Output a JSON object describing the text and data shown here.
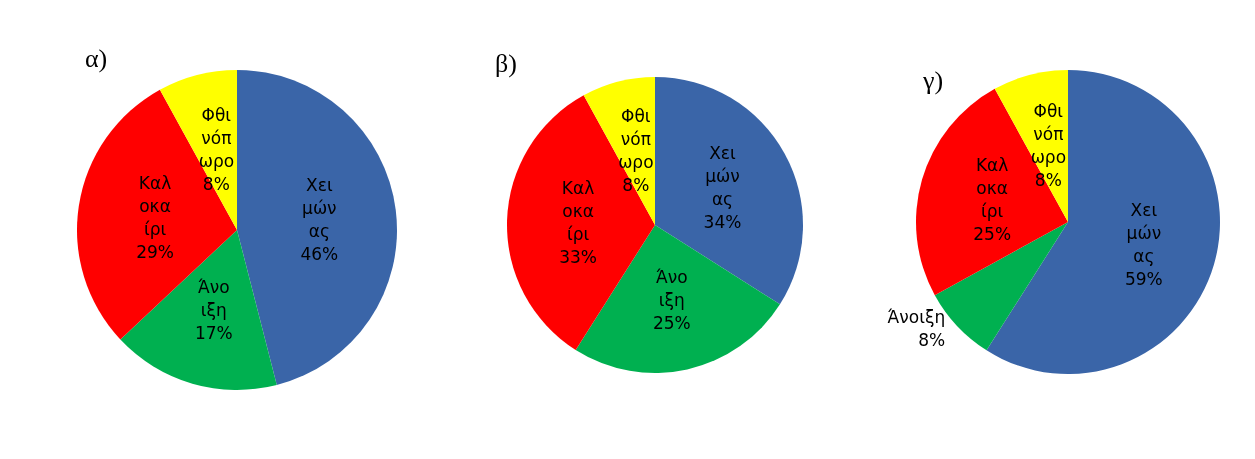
{
  "chart_data": [
    {
      "type": "pie",
      "title": "α)",
      "categories": [
        "Χειμώνας",
        "Άνοιξη",
        "Καλοκαίρι",
        "Φθινόπωρο"
      ],
      "values": [
        46,
        17,
        29,
        8
      ],
      "value_labels": [
        "46%",
        "17%",
        "29%",
        "8%"
      ],
      "colors": [
        "#3a65a8",
        "#00b050",
        "#ff0000",
        "#ffff00"
      ],
      "legend": false
    },
    {
      "type": "pie",
      "title": "β)",
      "categories": [
        "Χειμώνας",
        "Άνοιξη",
        "Καλοκαίρι",
        "Φθινόπωρο"
      ],
      "values": [
        34,
        25,
        33,
        8
      ],
      "value_labels": [
        "34%",
        "25%",
        "33%",
        "8%"
      ],
      "colors": [
        "#3a65a8",
        "#00b050",
        "#ff0000",
        "#ffff00"
      ],
      "legend": false
    },
    {
      "type": "pie",
      "title": "γ)",
      "categories": [
        "Χειμώνας",
        "Άνοιξη",
        "Καλοκαίρι",
        "Φθινόπωρο"
      ],
      "values": [
        59,
        8,
        25,
        8
      ],
      "value_labels": [
        "59%",
        "8%",
        "25%",
        "8%"
      ],
      "colors": [
        "#3a65a8",
        "#00b050",
        "#ff0000",
        "#ffff00"
      ],
      "legend": false
    }
  ]
}
